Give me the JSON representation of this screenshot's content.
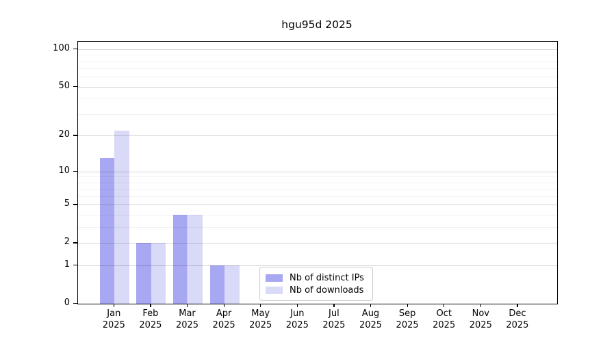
{
  "page": {
    "background": "#ffffff"
  },
  "chart_data": {
    "type": "bar",
    "title": "hgu95d 2025",
    "categories": [
      "Jan\n2025",
      "Feb\n2025",
      "Mar\n2025",
      "Apr\n2025",
      "May\n2025",
      "Jun\n2025",
      "Jul\n2025",
      "Aug\n2025",
      "Sep\n2025",
      "Oct\n2025",
      "Nov\n2025",
      "Dec\n2025"
    ],
    "series": [
      {
        "name": "Nb of distinct IPs",
        "color": "#a7a7f2",
        "values": [
          13,
          2,
          4,
          1,
          0,
          0,
          0,
          0,
          0,
          0,
          0,
          0
        ]
      },
      {
        "name": "Nb of downloads",
        "color": "#d9d9f8",
        "values": [
          22,
          2,
          4,
          1,
          0,
          0,
          0,
          0,
          0,
          0,
          0,
          0
        ]
      }
    ],
    "xlabel": "",
    "ylabel": "",
    "ylim": [
      0,
      100
    ],
    "yscale": "log1p",
    "yticks": [
      0,
      1,
      2,
      5,
      10,
      20,
      50,
      100
    ],
    "yticks_minor": [
      3,
      4,
      6,
      7,
      8,
      9,
      30,
      40,
      60,
      70,
      80,
      90
    ],
    "grid": "horizontal",
    "legend_position": "lower center inside plot",
    "frame_color": "#000000"
  }
}
